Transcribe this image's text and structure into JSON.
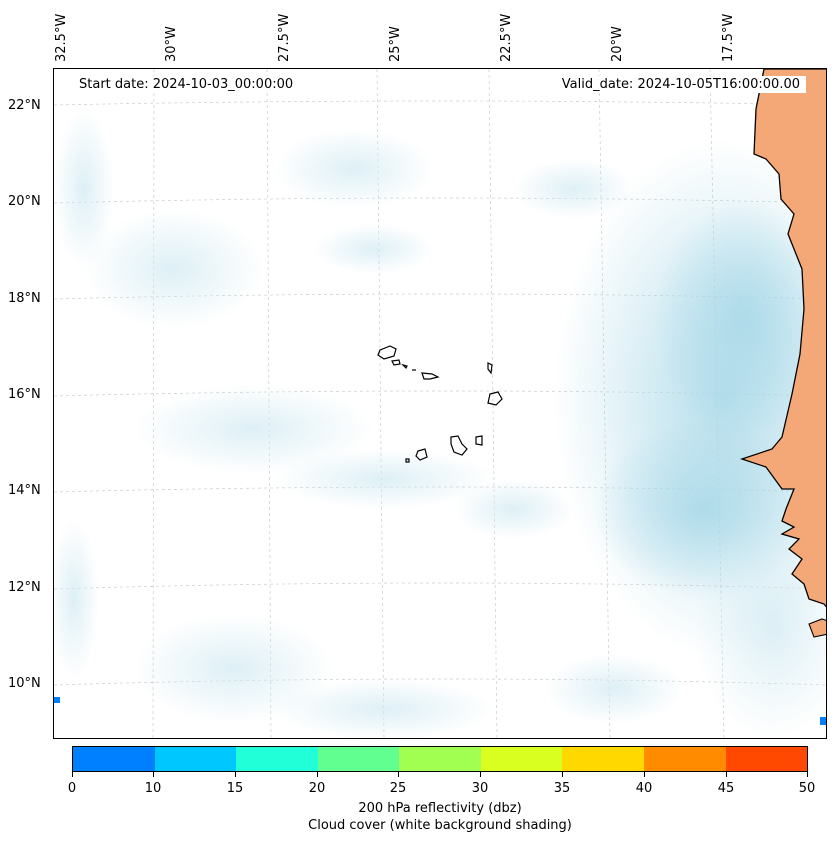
{
  "map": {
    "start_date": "Start date: 2024-10-03_00:00:00",
    "valid_date": "Valid_date: 2024-10-05T16:00:00.00",
    "lon_labels": [
      "32.5°W",
      "30°W",
      "27.5°W",
      "25°W",
      "22.5°W",
      "20°W",
      "17.5°W"
    ],
    "lat_labels": [
      "22°N",
      "20°N",
      "18°N",
      "16°N",
      "14°N",
      "12°N",
      "10°N"
    ],
    "land_color": "#f4a878",
    "coast_color": "#000000",
    "cloud_color": "#a8d8e8"
  },
  "colorbar": {
    "ticks": [
      "0",
      "10",
      "15",
      "20",
      "25",
      "30",
      "35",
      "40",
      "45",
      "50"
    ],
    "colors": [
      "#0080ff",
      "#00c8ff",
      "#20ffd8",
      "#60ff90",
      "#a0ff50",
      "#d8ff20",
      "#ffd800",
      "#ff8c00",
      "#ff4800"
    ],
    "label_line1": "200 hPa reflectivity (dbz)",
    "label_line2": "Cloud cover (white background shading)"
  }
}
